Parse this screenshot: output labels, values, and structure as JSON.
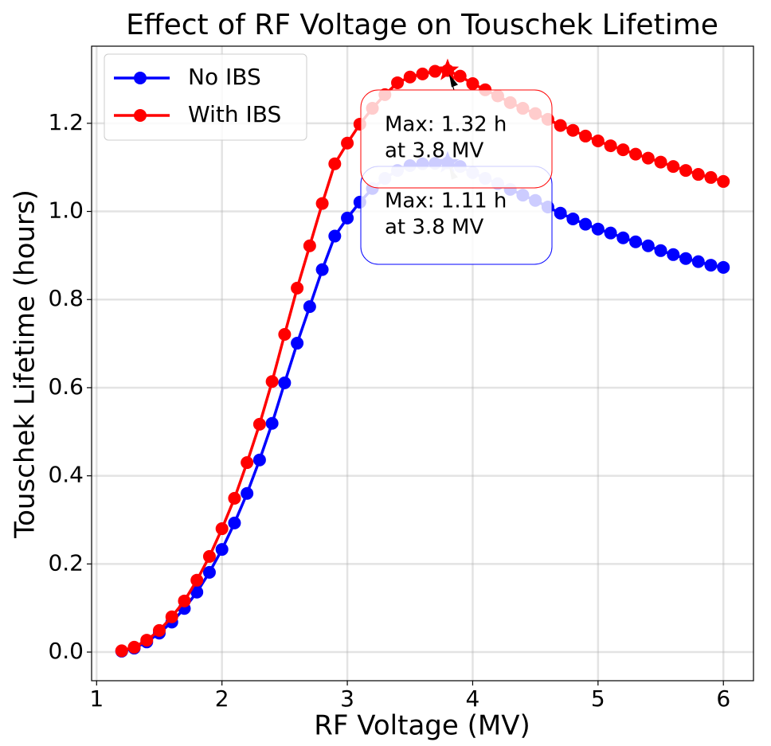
{
  "chart_data": {
    "type": "line",
    "title": "Effect of RF Voltage on Touschek Lifetime",
    "xlabel": "RF Voltage (MV)",
    "ylabel": "Touschek Lifetime (hours)",
    "x": [
      1.2,
      1.3,
      1.4,
      1.5,
      1.6,
      1.7,
      1.8,
      1.9,
      2.0,
      2.1,
      2.2,
      2.3,
      2.4,
      2.5,
      2.6,
      2.7,
      2.8,
      2.9,
      3.0,
      3.1,
      3.2,
      3.3,
      3.4,
      3.5,
      3.6,
      3.7,
      3.8,
      3.9,
      4.0,
      4.1,
      4.2,
      4.3,
      4.4,
      4.5,
      4.6,
      4.7,
      4.8,
      4.9,
      5.0,
      5.1,
      5.2,
      5.3,
      5.4,
      5.5,
      5.6,
      5.7,
      5.8,
      5.9,
      6.0
    ],
    "series": [
      {
        "name": "No IBS",
        "color": "#0000ff",
        "values": [
          0.002,
          0.009,
          0.023,
          0.043,
          0.068,
          0.099,
          0.136,
          0.181,
          0.233,
          0.293,
          0.36,
          0.436,
          0.519,
          0.611,
          0.701,
          0.784,
          0.868,
          0.944,
          0.985,
          1.021,
          1.052,
          1.075,
          1.093,
          1.104,
          1.108,
          1.109,
          1.11,
          1.102,
          1.088,
          1.075,
          1.063,
          1.05,
          1.037,
          1.025,
          1.01,
          0.996,
          0.983,
          0.971,
          0.96,
          0.951,
          0.94,
          0.931,
          0.922,
          0.911,
          0.902,
          0.893,
          0.886,
          0.878,
          0.873
        ]
      },
      {
        "name": "With IBS",
        "color": "#ff0000",
        "values": [
          0.003,
          0.011,
          0.027,
          0.049,
          0.08,
          0.116,
          0.163,
          0.217,
          0.28,
          0.349,
          0.43,
          0.517,
          0.614,
          0.721,
          0.826,
          0.922,
          1.018,
          1.108,
          1.155,
          1.198,
          1.234,
          1.265,
          1.292,
          1.305,
          1.312,
          1.318,
          1.32,
          1.307,
          1.29,
          1.276,
          1.262,
          1.247,
          1.234,
          1.222,
          1.209,
          1.195,
          1.184,
          1.171,
          1.16,
          1.149,
          1.14,
          1.13,
          1.121,
          1.112,
          1.102,
          1.093,
          1.084,
          1.077,
          1.068
        ]
      }
    ],
    "annotations": [
      {
        "lines": [
          "Max: 1.11 h",
          "at 3.8 MV"
        ],
        "xy": [
          3.8,
          1.11
        ],
        "color": "#0000ff"
      },
      {
        "lines": [
          "Max: 1.32 h",
          "at 3.8 MV"
        ],
        "xy": [
          3.8,
          1.32
        ],
        "color": "#ff0000"
      }
    ],
    "xlim": [
      0.96,
      6.24
    ],
    "ylim": [
      -0.065,
      1.375
    ],
    "xticks": [
      1,
      2,
      3,
      4,
      5,
      6
    ],
    "yticks": [
      {
        "value": 0,
        "label": "0.0"
      },
      0.2,
      0.4,
      0.6,
      0.8,
      {
        "value": 1,
        "label": "1.0"
      },
      1.2
    ],
    "grid": true,
    "legend": "upper left"
  }
}
